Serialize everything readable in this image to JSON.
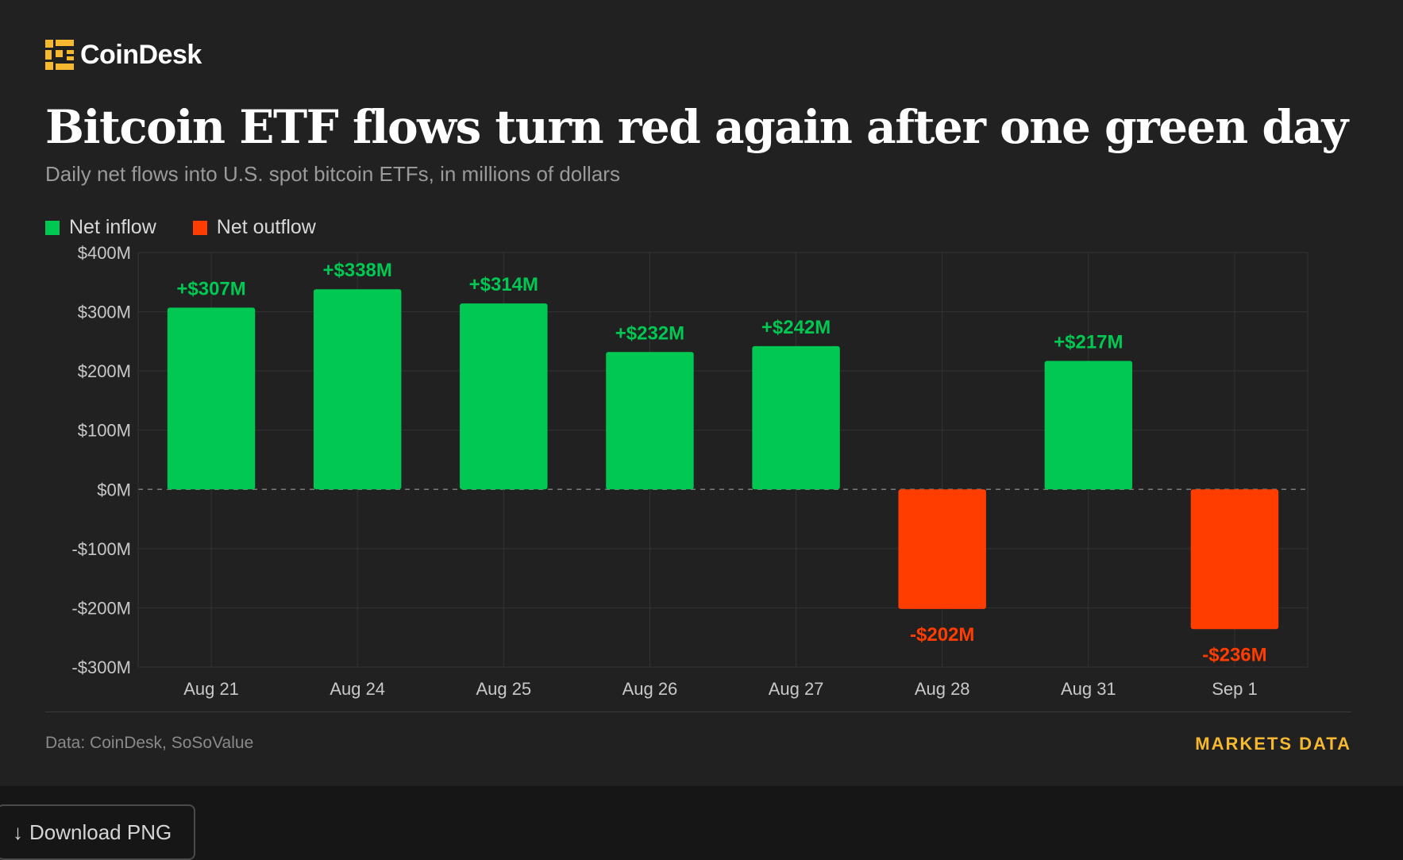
{
  "brand": {
    "name": "CoinDesk",
    "logo_color": "#f5b82e"
  },
  "header": {
    "title": "Bitcoin ETF flows turn red again after one green day",
    "subtitle": "Daily net flows into U.S. spot bitcoin ETFs, in millions of dollars"
  },
  "legend": {
    "inflow": {
      "label": "Net inflow",
      "color": "#00c853"
    },
    "outflow": {
      "label": "Net outflow",
      "color": "#ff3d00"
    }
  },
  "footer": {
    "source": "Data: CoinDesk, SoSoValue",
    "markets_label": "MARKETS DATA"
  },
  "download": {
    "icon": "arrow-down-icon",
    "label": "Download PNG"
  },
  "chart_data": {
    "type": "bar",
    "title": "Bitcoin ETF flows turn red again after one green day",
    "subtitle": "Daily net flows into U.S. spot bitcoin ETFs, in millions of dollars",
    "xlabel": "",
    "ylabel": "",
    "categories": [
      "Aug 21",
      "Aug 24",
      "Aug 25",
      "Aug 26",
      "Aug 27",
      "Aug 28",
      "Aug 31",
      "Sep 1"
    ],
    "values": [
      307,
      338,
      314,
      232,
      242,
      -202,
      217,
      -236
    ],
    "value_labels": [
      "+$307M",
      "+$338M",
      "+$314M",
      "+$232M",
      "+$242M",
      "-$202M",
      "+$217M",
      "-$236M"
    ],
    "ylim": [
      -300,
      400
    ],
    "yticks": [
      400,
      300,
      200,
      100,
      0,
      -100,
      -200,
      -300
    ],
    "ytick_labels": [
      "$400M",
      "$300M",
      "$200M",
      "$100M",
      "$0M",
      "-$100M",
      "-$200M",
      "-$300M"
    ],
    "grid": true,
    "legend_position": "top-left",
    "colors": {
      "positive": "#00c853",
      "negative": "#ff3d00"
    }
  }
}
